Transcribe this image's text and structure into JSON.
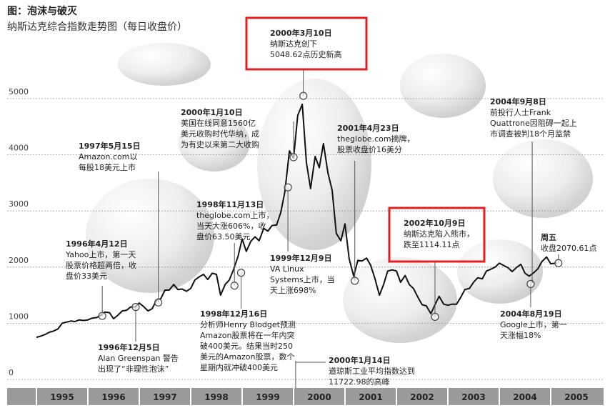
{
  "chart_data": {
    "type": "line",
    "title": "图：泡沫与破灭",
    "subtitle": "纳斯达克综合指数走势图（每日收盘价）",
    "xlim": [
      1995,
      2006
    ],
    "xticks": [
      1995,
      1996,
      1997,
      1998,
      1999,
      2000,
      2001,
      2002,
      2003,
      2004,
      2005
    ],
    "ylim": [
      0,
      5000
    ],
    "yticks": [
      0,
      1000,
      2000,
      3000,
      4000,
      5000
    ],
    "grid": true,
    "color": "#111111",
    "highlight_color": "#e02020",
    "x": [
      1995,
      1995.08,
      1995.17,
      1995.25,
      1995.33,
      1995.42,
      1995.5,
      1995.58,
      1995.67,
      1995.75,
      1995.83,
      1995.92,
      1996,
      1996.08,
      1996.17,
      1996.25,
      1996.33,
      1996.42,
      1996.5,
      1996.58,
      1996.67,
      1996.75,
      1996.83,
      1996.92,
      1997,
      1997.08,
      1997.17,
      1997.25,
      1997.33,
      1997.42,
      1997.5,
      1997.58,
      1997.67,
      1997.75,
      1997.83,
      1997.92,
      1998,
      1998.08,
      1998.17,
      1998.25,
      1998.33,
      1998.42,
      1998.5,
      1998.58,
      1998.67,
      1998.75,
      1998.83,
      1998.92,
      1999,
      1999.08,
      1999.17,
      1999.25,
      1999.33,
      1999.42,
      1999.5,
      1999.58,
      1999.67,
      1999.75,
      1999.83,
      1999.92,
      2000,
      2000.08,
      2000.17,
      2000.25,
      2000.33,
      2000.42,
      2000.5,
      2000.58,
      2000.67,
      2000.75,
      2000.83,
      2000.92,
      2001,
      2001.08,
      2001.17,
      2001.25,
      2001.33,
      2001.42,
      2001.5,
      2001.58,
      2001.67,
      2001.75,
      2001.83,
      2001.92,
      2002,
      2002.08,
      2002.17,
      2002.25,
      2002.33,
      2002.42,
      2002.5,
      2002.58,
      2002.67,
      2002.75,
      2002.83,
      2002.92,
      2003,
      2003.08,
      2003.17,
      2003.25,
      2003.33,
      2003.42,
      2003.5,
      2003.58,
      2003.67,
      2003.75,
      2003.83,
      2003.92,
      2004,
      2004.08,
      2004.17,
      2004.25,
      2004.33,
      2004.42,
      2004.5,
      2004.58,
      2004.67,
      2004.75,
      2004.83,
      2004.92,
      2005,
      2005.12
    ],
    "values": [
      750,
      770,
      800,
      840,
      860,
      900,
      1000,
      1020,
      1040,
      1030,
      1060,
      1050,
      1060,
      1090,
      1100,
      1140,
      1200,
      1190,
      1080,
      1140,
      1220,
      1230,
      1290,
      1290,
      1360,
      1300,
      1220,
      1260,
      1400,
      1440,
      1590,
      1590,
      1690,
      1600,
      1610,
      1570,
      1620,
      1770,
      1830,
      1870,
      1780,
      1890,
      1870,
      1500,
      1690,
      1770,
      1950,
      2190,
      2500,
      2280,
      2460,
      2540,
      2470,
      2690,
      2640,
      2740,
      2750,
      2970,
      3340,
      4070,
      3940,
      4700,
      4900,
      3860,
      3400,
      3970,
      3770,
      4200,
      3670,
      3370,
      2600,
      2470,
      2770,
      2150,
      1840,
      2120,
      2110,
      2160,
      2030,
      1800,
      1500,
      1690,
      1930,
      1950,
      1930,
      1730,
      1850,
      1690,
      1620,
      1460,
      1330,
      1310,
      1170,
      1330,
      1480,
      1340,
      1320,
      1340,
      1340,
      1460,
      1600,
      1620,
      1730,
      1810,
      1790,
      1930,
      1960,
      2000,
      2070,
      2030,
      1990,
      1920,
      1990,
      2050,
      1890,
      1840,
      1900,
      1970,
      2100,
      2180,
      2060,
      2070
    ],
    "annotations": [
      {
        "date": "1996年4月12日",
        "lines": [
          "Yahoo上市，第一天",
          "股票价格超两倍，收",
          "盘价33美元"
        ],
        "x": 1996.28,
        "y": 1130
      },
      {
        "date": "1996年12月5日",
        "lines": [
          "Alan Greenspan 警告",
          "出现了“非理性泡沫”"
        ],
        "x": 1996.93,
        "y": 1290
      },
      {
        "date": "1997年5月15日",
        "lines": [
          "Amazon.com以",
          "每股18美元上市"
        ],
        "x": 1997.37,
        "y": 1370
      },
      {
        "date": "1998年11月13日",
        "lines": [
          "theglobe.com上市，",
          "当天大涨606%，收",
          "盘价63.50美元"
        ],
        "x": 1998.85,
        "y": 1670
      },
      {
        "date": "1998年12月16日",
        "lines": [
          "分析师Henry Blodget预测",
          "Amazon股票将在一年内突",
          "破400美元。结果当时250",
          "美元的Amazon股票，数个",
          "星期内就冲破400美元"
        ],
        "x": 1998.98,
        "y": 1900
      },
      {
        "date": "1999年12月9日",
        "lines": [
          "VA Linux",
          "Systems上市，当",
          "天上涨698%"
        ],
        "x": 1999.89,
        "y": 3420
      },
      {
        "date": "2000年1月10日",
        "lines": [
          "美国在线同意1560亿",
          "美元收购时代华纳，成",
          "为有史以来第二大收购"
        ],
        "x": 2000.0,
        "y": 3957
      },
      {
        "date": "2000年3月10日",
        "lines": [
          "纳斯达克创下",
          "5048.62点历史新高"
        ],
        "x": 2000.19,
        "y": 5048.62,
        "highlight": true
      },
      {
        "date": "2000年1月14日",
        "lines": [
          "道琼斯工业平均指数达到",
          "11722.98的高峰"
        ],
        "x": 2000.04
      },
      {
        "date": "2001年4月23日",
        "lines": [
          "theglobe.com摘牌，",
          "股票收盘价16美分"
        ],
        "x": 2001.19,
        "y": 1756
      },
      {
        "date": "2002年10月9日",
        "lines": [
          "纳斯达克陷入熊市，",
          "跌至1114.11点"
        ],
        "x": 2002.75,
        "y": 1114.11,
        "highlight": true
      },
      {
        "date": "2004年8月19日",
        "lines": [
          "Google上市，第一",
          "天涨幅18%"
        ],
        "x": 2004.61,
        "y": 1700
      },
      {
        "date": "2004年9月8日",
        "lines": [
          "前投行人士Frank",
          "Quattrone因阻碍一起上",
          "市调查被判18个月监禁"
        ],
        "x": 2004.64
      },
      {
        "date": "周五",
        "lines": [
          "收盘2070.61点"
        ],
        "x": 2005.15,
        "y": 2070.61
      }
    ]
  }
}
